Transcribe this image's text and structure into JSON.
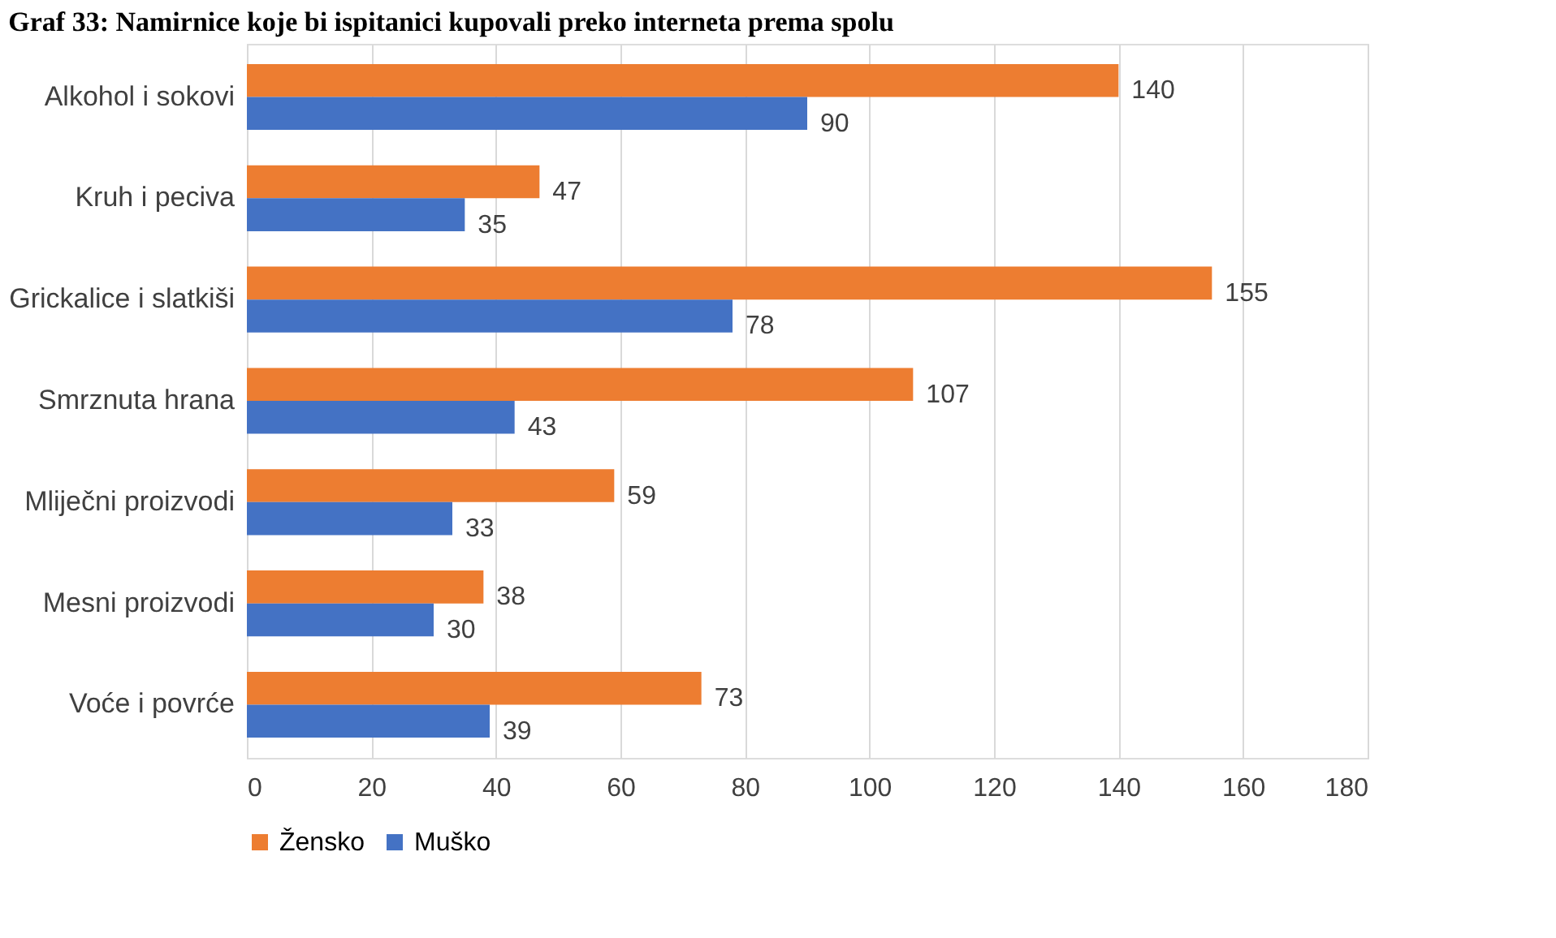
{
  "chart_data": {
    "type": "bar",
    "orientation": "horizontal",
    "title": "Graf 33: Namirnice koje bi ispitanici kupovali preko interneta prema spolu",
    "categories": [
      "Alkohol i sokovi",
      "Kruh i peciva",
      "Grickalice i slatkiši",
      "Smrznuta hrana",
      "Mliječni proizvodi",
      "Mesni proizvodi",
      "Voće i povrće"
    ],
    "series": [
      {
        "name": "Žensko",
        "color": "#ed7d31",
        "values": [
          140,
          47,
          155,
          107,
          59,
          38,
          73
        ]
      },
      {
        "name": "Muško",
        "color": "#4472c4",
        "values": [
          90,
          35,
          78,
          43,
          33,
          30,
          39
        ]
      }
    ],
    "xlim": [
      0,
      180
    ],
    "xticks": [
      0,
      20,
      40,
      60,
      80,
      100,
      120,
      140,
      160,
      180
    ],
    "grid": "x",
    "legend": "bottom",
    "data_labels": true
  }
}
